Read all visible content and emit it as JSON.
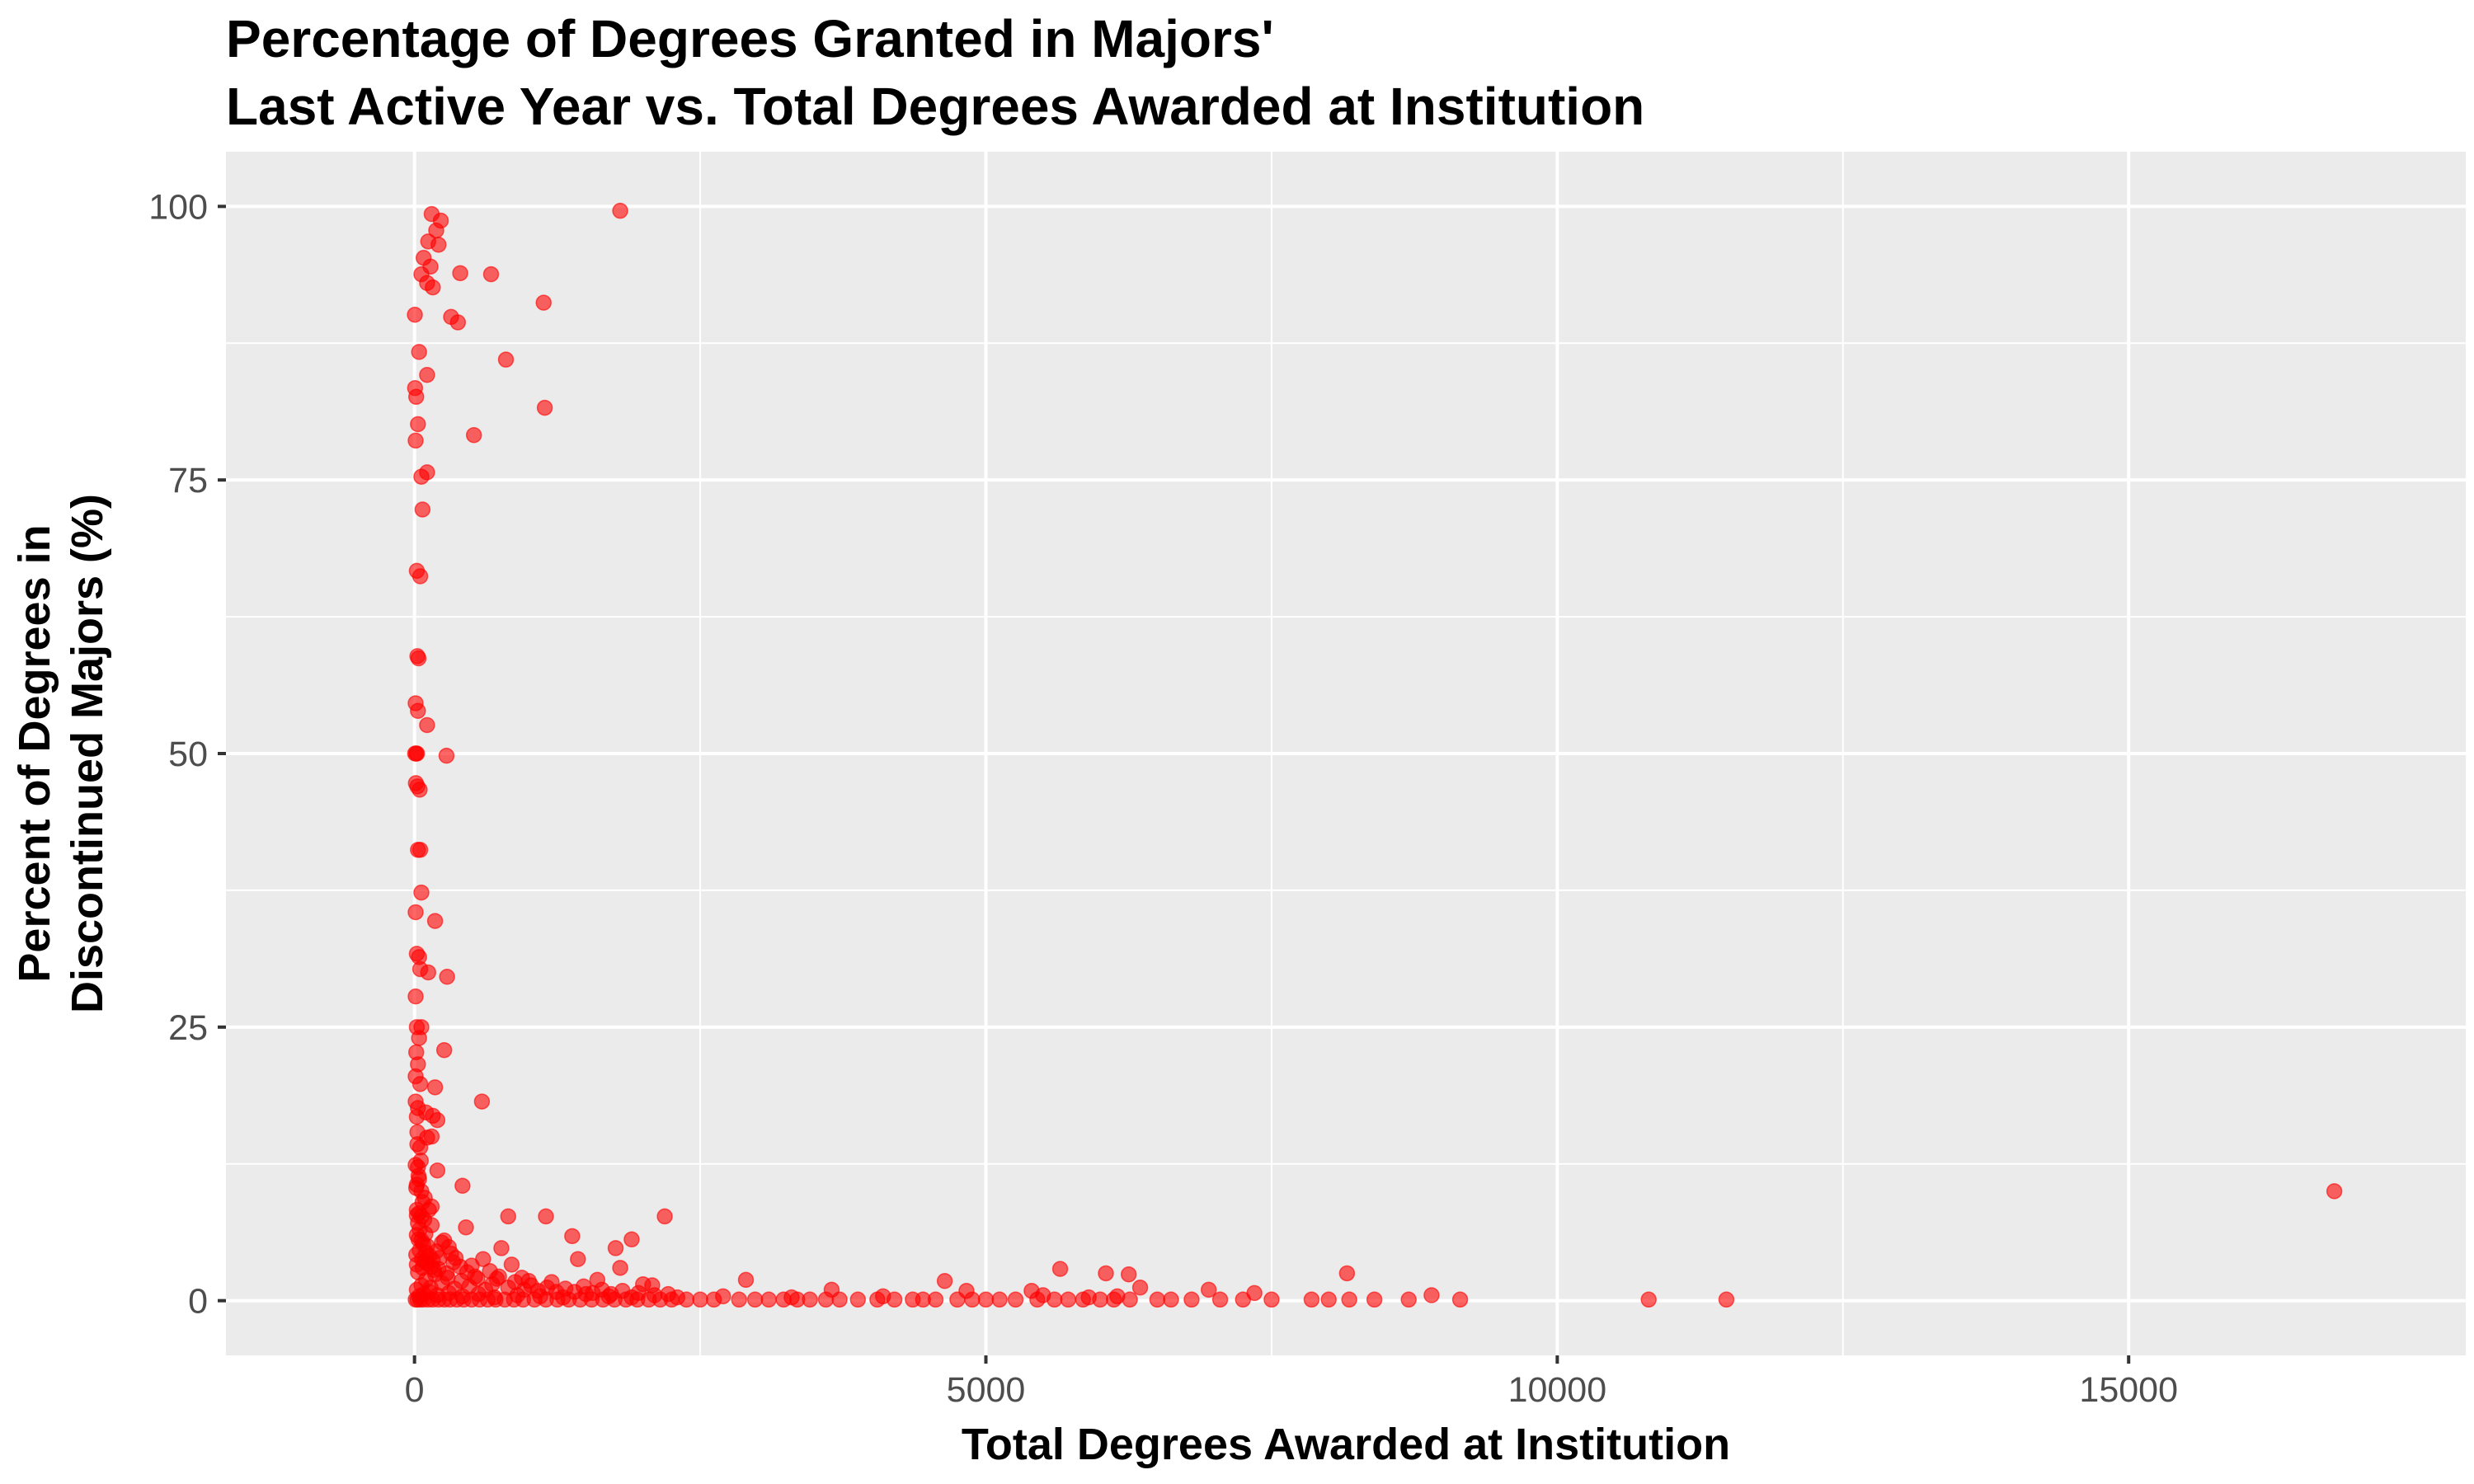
{
  "chart_data": {
    "type": "scatter",
    "title": [
      "Percentage of Degrees Granted in Majors'",
      "Last Active Year vs. Total Degrees Awarded at Institution"
    ],
    "xlabel": "Total Degrees Awarded at Institution",
    "ylabel": [
      "Percent of Degrees in",
      "Discontinued Majors (%)"
    ],
    "xlim": [
      -1650,
      17950
    ],
    "ylim": [
      -5,
      105
    ],
    "x_ticks": [
      0,
      5000,
      10000,
      15000
    ],
    "x_tick_labels": [
      "0",
      "5000",
      "10000",
      "15000"
    ],
    "y_ticks": [
      0,
      25,
      50,
      75,
      100
    ],
    "y_tick_labels": [
      "0",
      "25",
      "50",
      "75",
      "100"
    ],
    "x_minor_ticks": [
      2500,
      7500,
      12500
    ],
    "y_minor_ticks": [
      12.5,
      37.5,
      62.5,
      87.5
    ],
    "grid": true,
    "background": "#EBEBEB",
    "grid_color": "#FFFFFF",
    "point_color": "#FF0000",
    "point_alpha": 0.6,
    "series": [
      {
        "points": [
          [
            150,
            99.3
          ],
          [
            230,
            98.7
          ],
          [
            190,
            97.8
          ],
          [
            120,
            96.8
          ],
          [
            210,
            96.5
          ],
          [
            80,
            95.3
          ],
          [
            140,
            94.5
          ],
          [
            60,
            93.8
          ],
          [
            110,
            93.0
          ],
          [
            160,
            92.6
          ],
          [
            3,
            90.1
          ],
          [
            320,
            89.9
          ],
          [
            380,
            89.4
          ],
          [
            400,
            93.9
          ],
          [
            670,
            93.8
          ],
          [
            1130,
            91.2
          ],
          [
            1800,
            99.6
          ],
          [
            800,
            86.0
          ],
          [
            40,
            86.7
          ],
          [
            110,
            84.6
          ],
          [
            1140,
            81.6
          ],
          [
            5,
            83.4
          ],
          [
            15,
            82.6
          ],
          [
            30,
            80.1
          ],
          [
            10,
            78.6
          ],
          [
            520,
            79.1
          ],
          [
            110,
            75.7
          ],
          [
            60,
            75.3
          ],
          [
            70,
            72.3
          ],
          [
            20,
            66.7
          ],
          [
            50,
            66.2
          ],
          [
            25,
            58.9
          ],
          [
            35,
            58.7
          ],
          [
            10,
            54.6
          ],
          [
            30,
            53.9
          ],
          [
            110,
            52.6
          ],
          [
            5,
            50.0
          ],
          [
            15,
            50.0
          ],
          [
            22,
            50.0
          ],
          [
            280,
            49.8
          ],
          [
            12,
            47.3
          ],
          [
            25,
            47.0
          ],
          [
            45,
            46.7
          ],
          [
            30,
            41.2
          ],
          [
            50,
            41.2
          ],
          [
            60,
            37.3
          ],
          [
            10,
            35.5
          ],
          [
            180,
            34.7
          ],
          [
            20,
            31.7
          ],
          [
            40,
            31.4
          ],
          [
            50,
            30.3
          ],
          [
            120,
            30.0
          ],
          [
            285,
            29.6
          ],
          [
            10,
            27.8
          ],
          [
            20,
            25.0
          ],
          [
            60,
            25.0
          ],
          [
            40,
            24.0
          ],
          [
            15,
            22.7
          ],
          [
            260,
            22.9
          ],
          [
            30,
            21.6
          ],
          [
            10,
            20.5
          ],
          [
            50,
            19.8
          ],
          [
            180,
            19.5
          ],
          [
            10,
            18.2
          ],
          [
            30,
            17.6
          ],
          [
            100,
            17.2
          ],
          [
            590,
            18.2
          ],
          [
            20,
            16.8
          ],
          [
            160,
            16.9
          ],
          [
            200,
            16.5
          ],
          [
            25,
            15.4
          ],
          [
            110,
            14.9
          ],
          [
            150,
            15.0
          ],
          [
            50,
            14.0
          ],
          [
            10,
            12.4
          ],
          [
            30,
            12.2
          ],
          [
            200,
            11.9
          ],
          [
            40,
            11.1
          ],
          [
            20,
            10.6
          ],
          [
            60,
            10.0
          ],
          [
            420,
            10.5
          ],
          [
            90,
            9.4
          ],
          [
            150,
            8.6
          ],
          [
            20,
            8.3
          ],
          [
            60,
            7.7
          ],
          [
            820,
            7.7
          ],
          [
            1150,
            7.7
          ],
          [
            2190,
            7.7
          ],
          [
            30,
            7.1
          ],
          [
            150,
            6.9
          ],
          [
            450,
            6.7
          ],
          [
            20,
            6.0
          ],
          [
            60,
            5.5
          ],
          [
            1380,
            5.9
          ],
          [
            1900,
            5.6
          ],
          [
            110,
            5.0
          ],
          [
            260,
            5.5
          ],
          [
            760,
            4.8
          ],
          [
            1760,
            4.8
          ],
          [
            320,
            4.3
          ],
          [
            600,
            3.8
          ],
          [
            1430,
            3.8
          ],
          [
            20,
            3.3
          ],
          [
            90,
            3.6
          ],
          [
            150,
            3.1
          ],
          [
            400,
            3.1
          ],
          [
            850,
            3.3
          ],
          [
            1800,
            3.0
          ],
          [
            5650,
            2.9
          ],
          [
            4640,
            1.8
          ],
          [
            2900,
            1.9
          ],
          [
            6050,
            2.5
          ],
          [
            6250,
            2.4
          ],
          [
            8160,
            2.5
          ],
          [
            3650,
            1.0
          ],
          [
            4830,
            0.9
          ],
          [
            5400,
            0.9
          ],
          [
            6350,
            1.2
          ],
          [
            6950,
            1.0
          ],
          [
            7350,
            0.7
          ],
          [
            8900,
            0.5
          ],
          [
            10800,
            0.1
          ],
          [
            11480,
            0.1
          ],
          [
            16800,
            10.0
          ],
          [
            9150,
            0.1
          ],
          [
            8700,
            0.1
          ],
          [
            8400,
            0.1
          ],
          [
            8180,
            0.1
          ],
          [
            8000,
            0.1
          ],
          [
            7850,
            0.1
          ],
          [
            7500,
            0.1
          ],
          [
            7250,
            0.1
          ],
          [
            7050,
            0.1
          ],
          [
            6800,
            0.1
          ],
          [
            6620,
            0.1
          ],
          [
            6500,
            0.1
          ],
          [
            6260,
            0.1
          ],
          [
            6120,
            0.1
          ],
          [
            6000,
            0.1
          ],
          [
            5850,
            0.1
          ],
          [
            5720,
            0.1
          ],
          [
            5600,
            0.1
          ],
          [
            5450,
            0.1
          ],
          [
            5260,
            0.1
          ],
          [
            5120,
            0.1
          ],
          [
            5000,
            0.1
          ],
          [
            4880,
            0.1
          ],
          [
            4750,
            0.1
          ],
          [
            4560,
            0.1
          ],
          [
            4450,
            0.1
          ],
          [
            4360,
            0.1
          ],
          [
            4200,
            0.1
          ],
          [
            4050,
            0.1
          ],
          [
            3880,
            0.1
          ],
          [
            3720,
            0.1
          ],
          [
            3600,
            0.1
          ],
          [
            3460,
            0.1
          ],
          [
            3350,
            0.1
          ],
          [
            3230,
            0.1
          ],
          [
            3100,
            0.1
          ],
          [
            2980,
            0.1
          ],
          [
            2840,
            0.1
          ],
          [
            2620,
            0.1
          ],
          [
            2500,
            0.1
          ],
          [
            2380,
            0.1
          ],
          [
            2250,
            0.1
          ],
          [
            2150,
            0.1
          ],
          [
            2050,
            0.1
          ],
          [
            1950,
            0.1
          ],
          [
            1850,
            0.1
          ],
          [
            1750,
            0.1
          ],
          [
            1650,
            0.1
          ],
          [
            1550,
            0.1
          ],
          [
            1450,
            0.1
          ],
          [
            1350,
            0.1
          ],
          [
            1250,
            0.1
          ],
          [
            1150,
            0.1
          ],
          [
            1050,
            0.1
          ],
          [
            950,
            0.1
          ],
          [
            870,
            0.1
          ],
          [
            790,
            0.1
          ],
          [
            710,
            0.1
          ],
          [
            640,
            0.1
          ],
          [
            570,
            0.1
          ],
          [
            500,
            0.1
          ],
          [
            430,
            0.1
          ],
          [
            370,
            0.1
          ],
          [
            310,
            0.1
          ],
          [
            260,
            0.1
          ],
          [
            210,
            0.1
          ],
          [
            160,
            0.1
          ],
          [
            120,
            0.1
          ],
          [
            80,
            0.1
          ],
          [
            50,
            0.1
          ],
          [
            25,
            0.1
          ],
          [
            10,
            0.1
          ],
          [
            40,
            0.4
          ],
          [
            80,
            0.6
          ],
          [
            130,
            0.8
          ],
          [
            200,
            0.5
          ],
          [
            300,
            0.7
          ],
          [
            420,
            0.4
          ],
          [
            560,
            0.6
          ],
          [
            700,
            0.3
          ],
          [
            900,
            0.5
          ],
          [
            1100,
            0.4
          ],
          [
            1300,
            0.3
          ],
          [
            1500,
            0.6
          ],
          [
            1700,
            0.4
          ],
          [
            1900,
            0.3
          ],
          [
            2100,
            0.5
          ],
          [
            2300,
            0.3
          ],
          [
            2700,
            0.4
          ],
          [
            3300,
            0.3
          ],
          [
            4100,
            0.4
          ],
          [
            5500,
            0.5
          ],
          [
            5900,
            0.3
          ],
          [
            6150,
            0.4
          ],
          [
            20,
            1.0
          ],
          [
            60,
            1.4
          ],
          [
            100,
            1.9
          ],
          [
            140,
            1.2
          ],
          [
            180,
            2.4
          ],
          [
            240,
            1.6
          ],
          [
            290,
            2.1
          ],
          [
            350,
            1.1
          ],
          [
            410,
            1.8
          ],
          [
            480,
            1.3
          ],
          [
            550,
            2.0
          ],
          [
            620,
            1.0
          ],
          [
            680,
            1.5
          ],
          [
            740,
            2.2
          ],
          [
            820,
            1.2
          ],
          [
            880,
            1.7
          ],
          [
            960,
            1.0
          ],
          [
            1020,
            1.4
          ],
          [
            1080,
            0.9
          ],
          [
            1160,
            1.2
          ],
          [
            1240,
            0.8
          ],
          [
            1320,
            1.1
          ],
          [
            1400,
            0.8
          ],
          [
            1480,
            1.3
          ],
          [
            1560,
            0.7
          ],
          [
            1640,
            1.0
          ],
          [
            1720,
            0.6
          ],
          [
            1820,
            0.9
          ],
          [
            1960,
            0.7
          ],
          [
            2080,
            1.4
          ],
          [
            2220,
            0.6
          ],
          [
            30,
            2.6
          ],
          [
            70,
            3.0
          ],
          [
            110,
            3.4
          ],
          [
            170,
            2.8
          ],
          [
            220,
            3.9
          ],
          [
            280,
            2.5
          ],
          [
            340,
            3.5
          ],
          [
            460,
            2.6
          ],
          [
            530,
            2.2
          ],
          [
            660,
            2.7
          ],
          [
            720,
            2.0
          ],
          [
            940,
            2.1
          ],
          [
            1000,
            1.8
          ],
          [
            1200,
            1.7
          ],
          [
            1600,
            1.9
          ],
          [
            2000,
            1.5
          ],
          [
            15,
            4.2
          ],
          [
            45,
            4.6
          ],
          [
            75,
            5.2
          ],
          [
            95,
            6.1
          ],
          [
            130,
            4.1
          ],
          [
            190,
            4.5
          ],
          [
            240,
            5.3
          ],
          [
            300,
            4.9
          ],
          [
            360,
            3.9
          ],
          [
            500,
            3.2
          ],
          [
            40,
            8.0
          ],
          [
            70,
            9.0
          ],
          [
            15,
            10.3
          ],
          [
            35,
            11.4
          ],
          [
            55,
            12.8
          ],
          [
            25,
            14.3
          ],
          [
            45,
            6.5
          ],
          [
            85,
            7.4
          ],
          [
            125,
            8.3
          ],
          [
            65,
            3.8
          ],
          [
            35,
            5.6
          ],
          [
            20,
            7.8
          ],
          [
            100,
            4.4
          ],
          [
            160,
            3.7
          ],
          [
            210,
            2.9
          ]
        ]
      }
    ]
  }
}
